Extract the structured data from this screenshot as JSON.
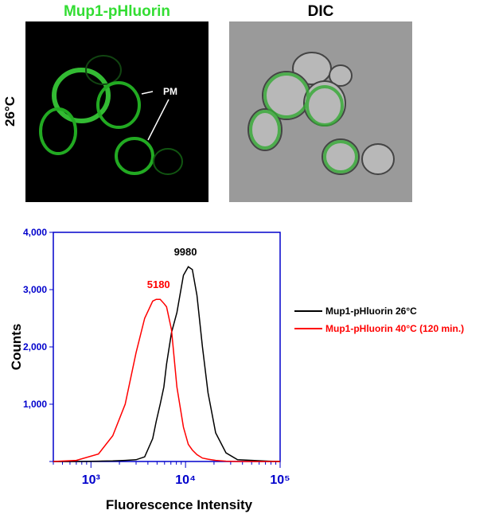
{
  "images": {
    "left_title": "Mup1-pHluorin",
    "right_title": "DIC",
    "row_label": "26°C",
    "annotation": "PM"
  },
  "chart_data": {
    "type": "line",
    "xlabel": "Fluorescence Intensity",
    "ylabel": "Counts",
    "xscale": "log",
    "axis_color": "#0000cc",
    "x": [
      400,
      700,
      1200,
      1700,
      2300,
      3000,
      3700,
      4500,
      4900,
      5400,
      5900,
      6300,
      7100,
      8100,
      9500,
      10700,
      11800,
      13200,
      15100,
      17300,
      20800,
      26800,
      35500,
      76000,
      100000
    ],
    "series": [
      {
        "name": "Mup1-pHluorin 26°C",
        "color": "#000000",
        "values": [
          0,
          0,
          5,
          10,
          20,
          30,
          80,
          400,
          700,
          1000,
          1300,
          1700,
          2250,
          2600,
          3250,
          3400,
          3350,
          2900,
          2000,
          1200,
          500,
          150,
          30,
          5,
          0
        ]
      },
      {
        "name": "Mup1-pHluorin 40°C (120 min.)",
        "color": "#ff0000",
        "values": [
          0,
          20,
          130,
          450,
          1000,
          1900,
          2500,
          2800,
          2830,
          2830,
          2760,
          2700,
          2300,
          1300,
          600,
          300,
          200,
          120,
          60,
          40,
          20,
          5,
          0,
          0,
          0
        ]
      }
    ],
    "annotations": [
      {
        "x": 9980,
        "y": 3400,
        "label": "9980",
        "color": "#000000"
      },
      {
        "x": 5180,
        "y": 2830,
        "label": "5180",
        "color": "#ff0000"
      }
    ],
    "xlim": [
      400,
      100000
    ],
    "xticks": [
      {
        "value": 1000,
        "label": "10³"
      },
      {
        "value": 10000,
        "label": "10⁴"
      },
      {
        "value": 100000,
        "label": "10⁵"
      }
    ],
    "xminorticks": [
      400,
      500,
      600,
      700,
      800,
      900,
      2000,
      3000,
      4000,
      5000,
      6000,
      7000,
      8000,
      9000,
      20000,
      30000,
      40000,
      50000,
      60000,
      70000,
      80000,
      90000
    ],
    "ylim": [
      0,
      4000
    ],
    "yticks": [
      0,
      {
        "value": 1000,
        "label": "1,000"
      },
      {
        "value": 2000,
        "label": "2,000"
      },
      {
        "value": 3000,
        "label": "3,000"
      },
      {
        "value": 4000,
        "label": "4,000"
      }
    ]
  }
}
